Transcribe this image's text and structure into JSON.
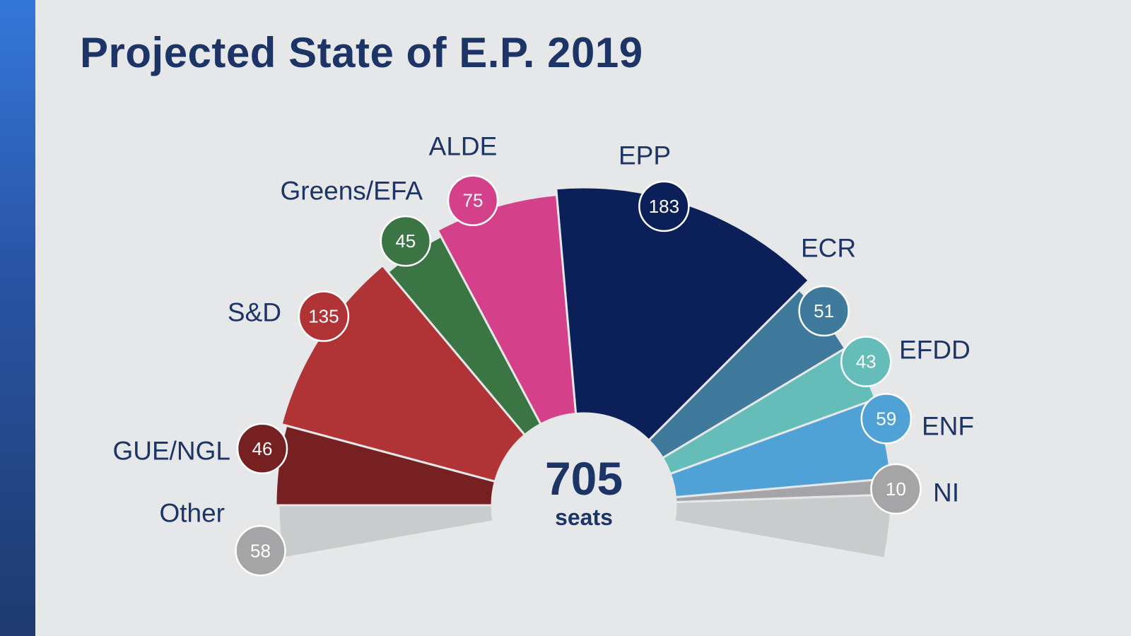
{
  "title": "Projected State of E.P. 2019",
  "colors": {
    "background": "#e6e7e9",
    "title": "#1d3566",
    "accent": "#2a56a8"
  },
  "chart_data": {
    "type": "parliament-semicircle",
    "title": "Projected State of E.P. 2019",
    "total": {
      "value": "705",
      "unit": "seats"
    },
    "series": [
      {
        "name": "Other",
        "value": 58,
        "color": "#c9cccc",
        "badge_color": "#a5a5a7"
      },
      {
        "name": "GUE/NGL",
        "value": 46,
        "color": "#762021"
      },
      {
        "name": "S&D",
        "value": 135,
        "color": "#b03336"
      },
      {
        "name": "Greens/EFA",
        "value": 45,
        "color": "#3a7543"
      },
      {
        "name": "ALDE",
        "value": 75,
        "color": "#d5408a"
      },
      {
        "name": "EPP",
        "value": 183,
        "color": "#0b2059"
      },
      {
        "name": "ECR",
        "value": 51,
        "color": "#3f799c"
      },
      {
        "name": "EFDD",
        "value": 43,
        "color": "#64bdb9"
      },
      {
        "name": "ENF",
        "value": 59,
        "color": "#4fa1d6"
      },
      {
        "name": "NI",
        "value": 10,
        "color": "#a5a5a7"
      }
    ]
  }
}
